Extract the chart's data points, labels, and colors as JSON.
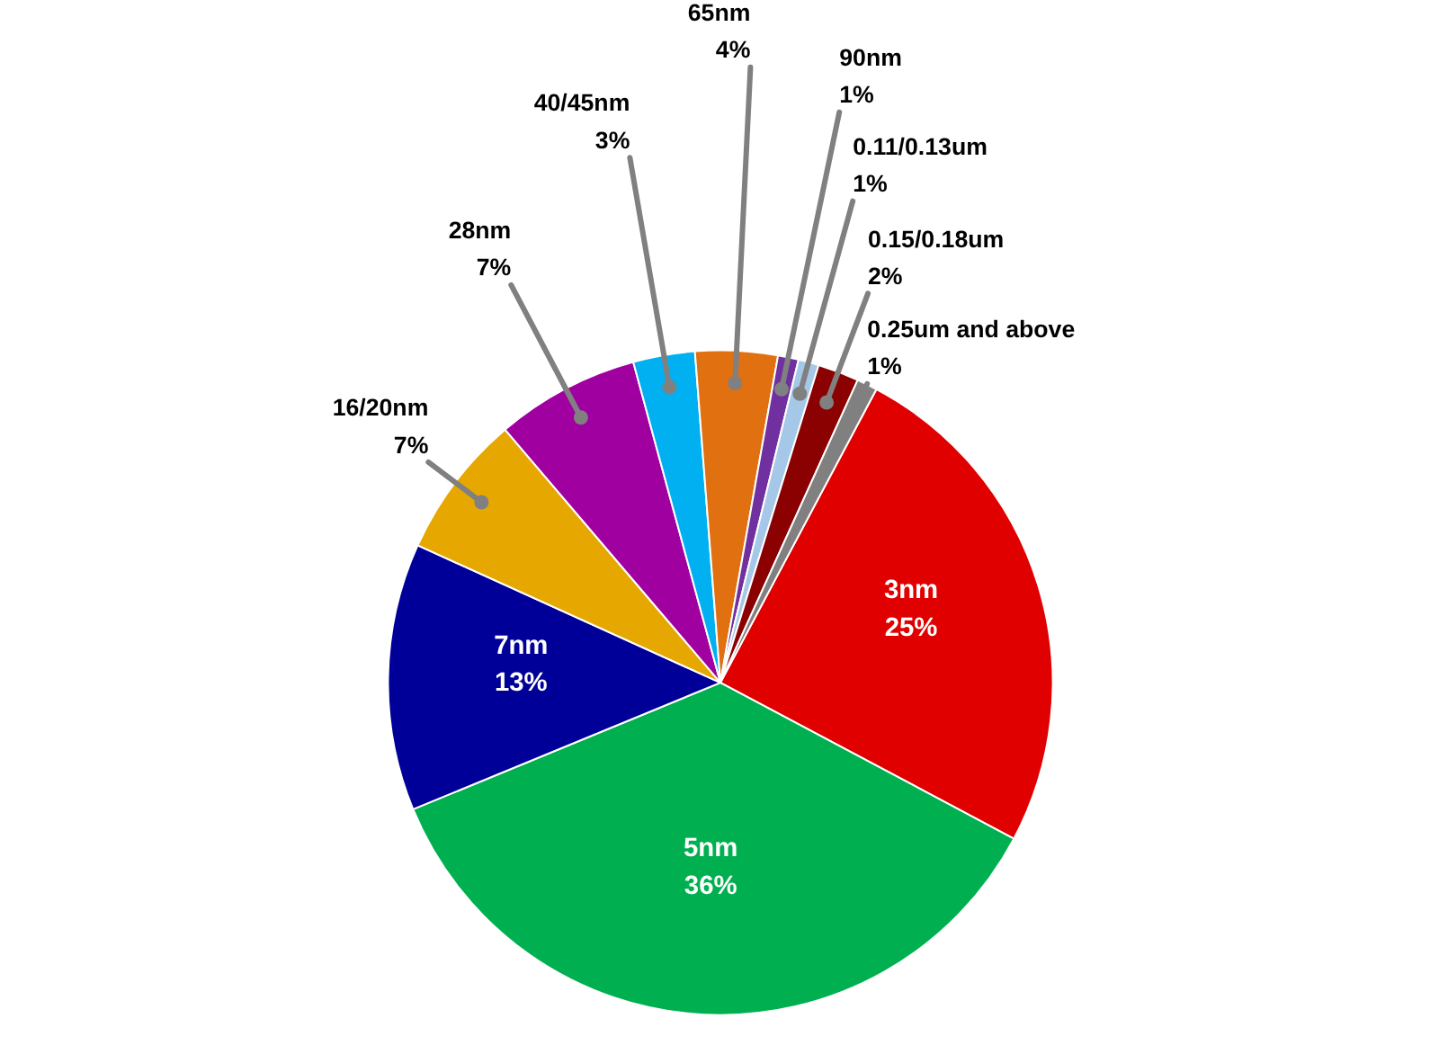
{
  "chart_data": {
    "type": "pie",
    "categories": [
      "3nm",
      "5nm",
      "7nm",
      "16/20nm",
      "28nm",
      "40/45nm",
      "65nm",
      "90nm",
      "0.11/0.13um",
      "0.15/0.18um",
      "0.25um and above"
    ],
    "values": [
      25,
      36,
      13,
      7,
      7,
      3,
      4,
      1,
      1,
      2,
      1
    ],
    "value_labels": [
      "25%",
      "36%",
      "13%",
      "7%",
      "7%",
      "3%",
      "4%",
      "1%",
      "1%",
      "2%",
      "1%"
    ],
    "colors": [
      "#e00000",
      "#00b050",
      "#000099",
      "#e6a800",
      "#a000a0",
      "#00b0f0",
      "#e07010",
      "#7030a0",
      "#a6c8e8",
      "#8b0000",
      "#808080"
    ]
  }
}
